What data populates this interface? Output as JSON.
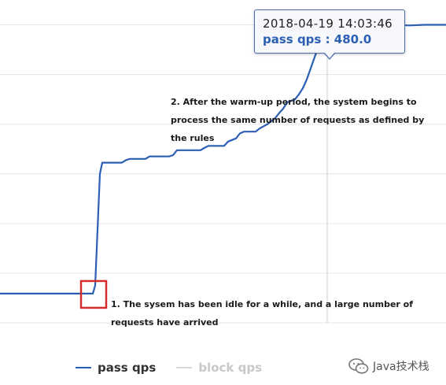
{
  "chart_data": {
    "type": "line",
    "title": "",
    "xlabel": "",
    "ylabel": "",
    "grid": true,
    "legend_position": "bottom",
    "series": [
      {
        "name": "pass qps",
        "color": "#2b5fb4",
        "x": [
          0,
          40,
          80,
          118,
          121,
          124,
          127,
          130,
          133,
          155,
          160,
          165,
          185,
          190,
          215,
          220,
          225,
          255,
          260,
          265,
          285,
          290,
          300,
          305,
          310,
          325,
          330,
          340,
          350,
          355,
          360,
          365,
          375,
          380,
          385,
          390,
          395,
          400,
          405,
          410,
          416,
          425,
          430,
          440,
          460,
          480,
          500,
          520,
          540,
          567
        ],
        "y": [
          47,
          47,
          47,
          47,
          60,
          150,
          240,
          258,
          258,
          258,
          262,
          264,
          264,
          268,
          268,
          270,
          278,
          278,
          282,
          285,
          285,
          292,
          297,
          305,
          308,
          308,
          313,
          320,
          330,
          338,
          345,
          355,
          360,
          368,
          378,
          392,
          410,
          428,
          445,
          463,
          480,
          478,
          480,
          479,
          480,
          479,
          480,
          479,
          480,
          480
        ]
      },
      {
        "name": "block qps",
        "color": "#d7d7d7",
        "x": [],
        "y": []
      }
    ],
    "xlim": [
      0,
      567
    ],
    "ylim": [
      0,
      520
    ],
    "highlight": {
      "x": 416,
      "y": 480
    },
    "tooltip": {
      "time": "2018-04-19 14:03:46",
      "value_text": "pass qps : 480.0"
    },
    "annotations": [
      {
        "id": "note-2",
        "text": "2. After the warm-up period, the system begins to process the same number of requests as defined by the rules"
      },
      {
        "id": "note-1",
        "text": "1. The sysem has been idle for a while, and a large number of requests have arrived"
      }
    ]
  },
  "legend": {
    "items": [
      {
        "label": "pass qps",
        "color": "#2b5fb4",
        "active": true
      },
      {
        "label": "block qps",
        "color": "#d7d7d7",
        "active": false
      }
    ]
  },
  "watermark": {
    "text": "Java技术栈"
  },
  "colors": {
    "line": "#2b5fb4",
    "grid": "#e6e6e6",
    "highlight_box": "#d62b2b",
    "crosshair": "#c9cdd4"
  }
}
